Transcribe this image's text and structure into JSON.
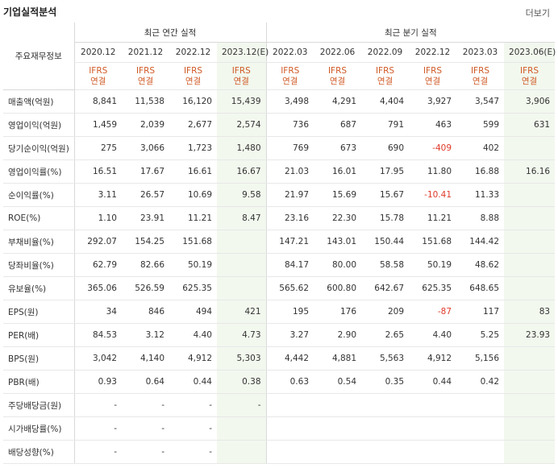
{
  "header": {
    "title": "기업실적분석",
    "more_label": "더보기"
  },
  "table": {
    "corner_label": "주요재무정보",
    "annual_group": "최근 연간 실적",
    "quarter_group": "최근 분기 실적",
    "periods": [
      "2020.12",
      "2021.12",
      "2022.12",
      "2023.12(E)",
      "2022.03",
      "2022.06",
      "2022.09",
      "2022.12",
      "2023.03",
      "2023.06(E)"
    ],
    "ifrs_line1": "IFRS",
    "ifrs_line2": "연결",
    "rows": [
      {
        "label": "매출액(억원)",
        "values": [
          "8,841",
          "11,538",
          "16,120",
          "15,439",
          "3,498",
          "4,291",
          "4,404",
          "3,927",
          "3,547",
          "3,906"
        ]
      },
      {
        "label": "영업이익(억원)",
        "values": [
          "1,459",
          "2,039",
          "2,677",
          "2,574",
          "736",
          "687",
          "791",
          "463",
          "599",
          "631"
        ]
      },
      {
        "label": "당기순이익(억원)",
        "values": [
          "275",
          "3,066",
          "1,723",
          "1,480",
          "769",
          "673",
          "690",
          "-409",
          "402",
          ""
        ]
      },
      {
        "label": "영업이익률(%)",
        "values": [
          "16.51",
          "17.67",
          "16.61",
          "16.67",
          "21.03",
          "16.01",
          "17.95",
          "11.80",
          "16.88",
          "16.16"
        ]
      },
      {
        "label": "순이익률(%)",
        "values": [
          "3.11",
          "26.57",
          "10.69",
          "9.58",
          "21.97",
          "15.69",
          "15.67",
          "-10.41",
          "11.33",
          ""
        ]
      },
      {
        "label": "ROE(%)",
        "values": [
          "1.10",
          "23.91",
          "11.21",
          "8.47",
          "23.16",
          "22.30",
          "15.78",
          "11.21",
          "8.88",
          ""
        ]
      },
      {
        "label": "부채비율(%)",
        "values": [
          "292.07",
          "154.25",
          "151.68",
          "",
          "147.21",
          "143.01",
          "150.44",
          "151.68",
          "144.42",
          ""
        ]
      },
      {
        "label": "당좌비율(%)",
        "values": [
          "62.79",
          "82.66",
          "50.19",
          "",
          "84.17",
          "80.00",
          "58.58",
          "50.19",
          "48.62",
          ""
        ]
      },
      {
        "label": "유보율(%)",
        "values": [
          "365.06",
          "526.59",
          "625.35",
          "",
          "565.62",
          "600.80",
          "642.67",
          "625.35",
          "648.65",
          ""
        ]
      },
      {
        "label": "EPS(원)",
        "values": [
          "34",
          "846",
          "494",
          "421",
          "195",
          "176",
          "209",
          "-87",
          "117",
          "83"
        ]
      },
      {
        "label": "PER(배)",
        "values": [
          "84.53",
          "3.12",
          "4.40",
          "4.73",
          "3.27",
          "2.90",
          "2.65",
          "4.40",
          "5.25",
          "23.93"
        ]
      },
      {
        "label": "BPS(원)",
        "values": [
          "3,042",
          "4,140",
          "4,912",
          "5,303",
          "4,442",
          "4,881",
          "5,563",
          "4,912",
          "5,156",
          ""
        ]
      },
      {
        "label": "PBR(배)",
        "values": [
          "0.93",
          "0.64",
          "0.44",
          "0.38",
          "0.63",
          "0.54",
          "0.35",
          "0.44",
          "0.42",
          ""
        ]
      },
      {
        "label": "주당배당금(원)",
        "values": [
          "-",
          "-",
          "-",
          "-",
          "",
          "",
          "",
          "",
          "",
          ""
        ]
      },
      {
        "label": "시가배당률(%)",
        "values": [
          "-",
          "-",
          "-",
          "",
          "",
          "",
          "",
          "",
          "",
          ""
        ]
      },
      {
        "label": "배당성향(%)",
        "values": [
          "-",
          "-",
          "-",
          "",
          "",
          "",
          "",
          "",
          "",
          ""
        ]
      }
    ]
  }
}
